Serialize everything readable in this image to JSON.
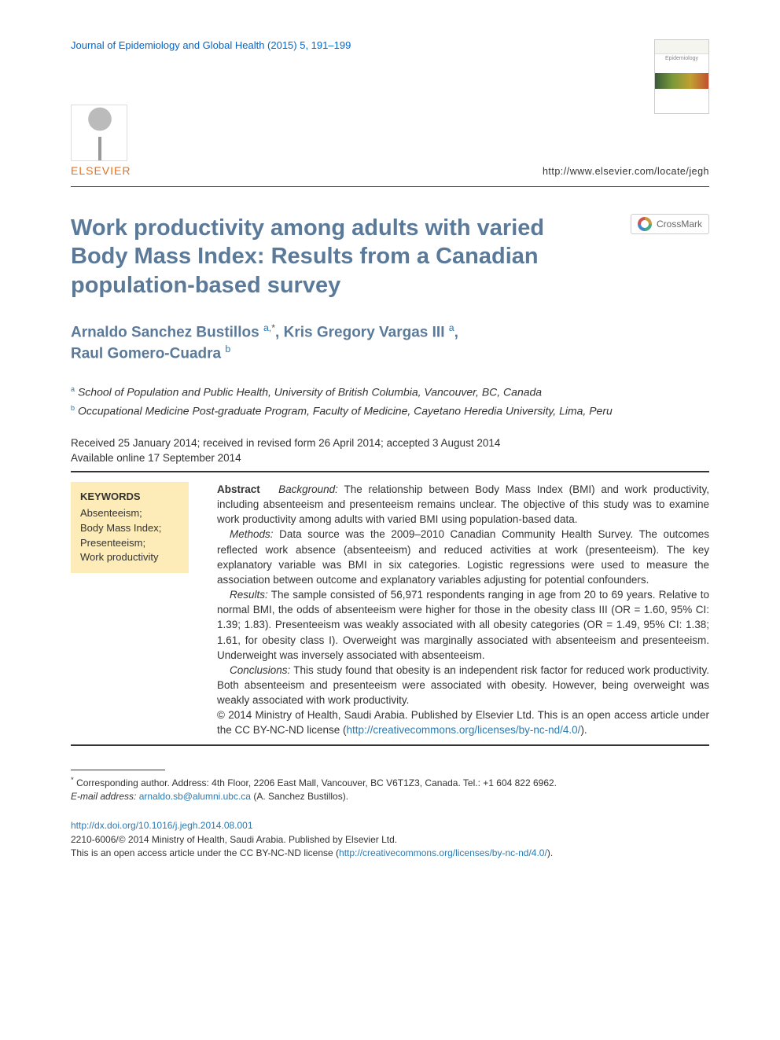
{
  "journal_ref": "Journal of Epidemiology and Global Health (2015) 5, 191–199",
  "cover_title": "Epidemiology",
  "publisher_logo_text": "ELSEVIER",
  "locate_url": "http://www.elsevier.com/locate/jegh",
  "title": "Work productivity among adults with varied Body Mass Index: Results from a Canadian population-based survey",
  "crossmark_label": "CrossMark",
  "authors_html_parts": {
    "a1_name": "Arnaldo Sanchez Bustillos",
    "a1_sup": "a,*",
    "a2_name": "Kris Gregory Vargas III",
    "a2_sup": "a",
    "a3_name": "Raul Gomero-Cuadra",
    "a3_sup": "b"
  },
  "affiliations": {
    "a": "School of Population and Public Health, University of British Columbia, Vancouver, BC, Canada",
    "b": "Occupational Medicine Post-graduate Program, Faculty of Medicine, Cayetano Heredia University, Lima, Peru"
  },
  "dates_line1": "Received 25 January 2014; received in revised form 26 April 2014; accepted 3 August 2014",
  "dates_line2": "Available online 17 September 2014",
  "keywords": {
    "head": "KEYWORDS",
    "items": [
      "Absenteeism;",
      "Body Mass Index;",
      "Presenteeism;",
      "Work productivity"
    ]
  },
  "abstract": {
    "lead": "Abstract",
    "bg_label": "Background:",
    "bg": " The relationship between Body Mass Index (BMI) and work productivity, including absenteeism and presenteeism remains unclear. The objective of this study was to examine work productivity among adults with varied BMI using population-based data.",
    "methods_label": "Methods:",
    "methods": " Data source was the 2009–2010 Canadian Community Health Survey. The outcomes reflected work absence (absenteeism) and reduced activities at work (presenteeism). The key explanatory variable was BMI in six categories. Logistic regressions were used to measure the association between outcome and explanatory variables adjusting for potential confounders.",
    "results_label": "Results:",
    "results": " The sample consisted of 56,971 respondents ranging in age from 20 to 69 years. Relative to normal BMI, the odds of absenteeism were higher for those in the obesity class III (OR = 1.60, 95% CI: 1.39; 1.83). Presenteeism was weakly associated with all obesity categories (OR = 1.49, 95% CI: 1.38; 1.61, for obesity class I). Overweight was marginally associated with absenteeism and presenteeism. Underweight was inversely associated with absenteeism.",
    "concl_label": "Conclusions:",
    "concl": " This study found that obesity is an independent risk factor for reduced work productivity. Both absenteeism and presenteeism were associated with obesity. However, being overweight was weakly associated with work productivity.",
    "copyright_pre": "© 2014 Ministry of Health, Saudi Arabia. Published by Elsevier Ltd. This is an open access article under the CC BY-NC-ND license (",
    "license_url": "http://creativecommons.org/licenses/by-nc-nd/4.0/",
    "copyright_post": ")."
  },
  "footnote": {
    "corr": "Corresponding author. Address: 4th Floor, 2206 East Mall, Vancouver, BC V6T1Z3, Canada. Tel.: +1 604 822 6962.",
    "email_label": "E-mail address:",
    "email": "arnaldo.sb@alumni.ubc.ca",
    "email_after": " (A. Sanchez Bustillos)."
  },
  "bottom": {
    "doi": "http://dx.doi.org/10.1016/j.jegh.2014.08.001",
    "issn_line": "2210-6006/© 2014 Ministry of Health, Saudi Arabia. Published by Elsevier Ltd.",
    "oa_pre": "This is an open access article under the CC BY-NC-ND license (",
    "oa_url": "http://creativecommons.org/licenses/by-nc-nd/4.0/",
    "oa_post": ")."
  },
  "colors": {
    "heading": "#5b7a99",
    "link": "#2a7ab0",
    "elsevier": "#e9711c",
    "kw_bg": "#fdecb8"
  }
}
